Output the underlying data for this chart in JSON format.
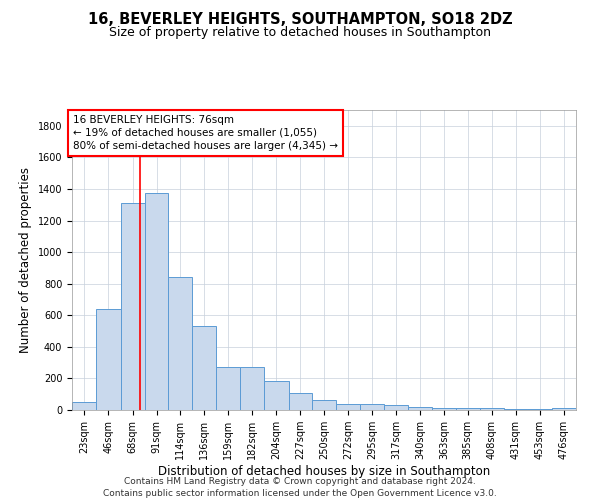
{
  "title": "16, BEVERLEY HEIGHTS, SOUTHAMPTON, SO18 2DZ",
  "subtitle": "Size of property relative to detached houses in Southampton",
  "xlabel": "Distribution of detached houses by size in Southampton",
  "ylabel": "Number of detached properties",
  "footer_line1": "Contains HM Land Registry data © Crown copyright and database right 2024.",
  "footer_line2": "Contains public sector information licensed under the Open Government Licence v3.0.",
  "annotation_line1": "16 BEVERLEY HEIGHTS: 76sqm",
  "annotation_line2": "← 19% of detached houses are smaller (1,055)",
  "annotation_line3": "80% of semi-detached houses are larger (4,345) →",
  "bar_color": "#c9d9ed",
  "bar_edge_color": "#5b9bd5",
  "vline_color": "red",
  "vline_x": 76,
  "categories": [
    "23sqm",
    "46sqm",
    "68sqm",
    "91sqm",
    "114sqm",
    "136sqm",
    "159sqm",
    "182sqm",
    "204sqm",
    "227sqm",
    "250sqm",
    "272sqm",
    "295sqm",
    "317sqm",
    "340sqm",
    "363sqm",
    "385sqm",
    "408sqm",
    "431sqm",
    "453sqm",
    "476sqm"
  ],
  "bin_edges": [
    11.5,
    34.5,
    57.5,
    80.5,
    102.5,
    125.5,
    147.5,
    170.5,
    193.5,
    216.5,
    238.5,
    261.5,
    284.5,
    306.5,
    329.5,
    352.5,
    374.5,
    397.5,
    420.5,
    442.5,
    465.5,
    488.5
  ],
  "values": [
    50,
    640,
    1310,
    1375,
    845,
    530,
    275,
    270,
    185,
    105,
    65,
    35,
    35,
    30,
    20,
    10,
    10,
    10,
    5,
    5,
    15
  ],
  "ylim": [
    0,
    1900
  ],
  "yticks": [
    0,
    200,
    400,
    600,
    800,
    1000,
    1200,
    1400,
    1600,
    1800
  ],
  "background_color": "#ffffff",
  "grid_color": "#c8d0dc",
  "title_fontsize": 10.5,
  "subtitle_fontsize": 9,
  "axis_label_fontsize": 8.5,
  "tick_fontsize": 7,
  "footer_fontsize": 6.5,
  "annotation_fontsize": 7.5
}
